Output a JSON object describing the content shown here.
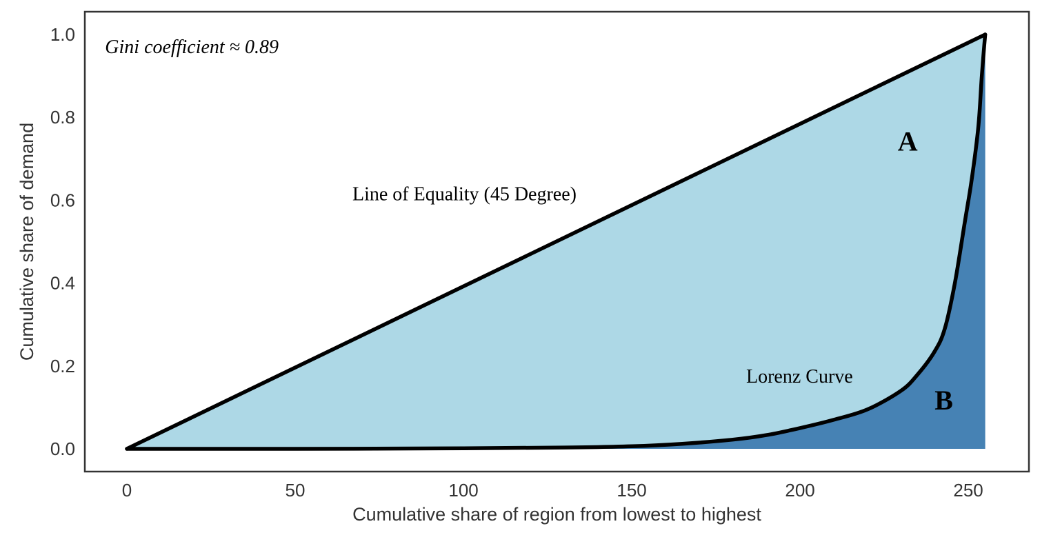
{
  "chart_data": {
    "type": "area",
    "title": "",
    "xlabel": "Cumulative share of region from lowest to highest",
    "ylabel": "Cumulative share of demand",
    "xlim": [
      -12.5,
      268
    ],
    "ylim": [
      -0.055,
      1.055
    ],
    "x_ticks": [
      0,
      50,
      100,
      150,
      200,
      250
    ],
    "x_tick_labels": [
      "0",
      "50",
      "100",
      "150",
      "200",
      "250"
    ],
    "y_ticks": [
      0.0,
      0.2,
      0.4,
      0.6,
      0.8,
      1.0
    ],
    "y_tick_labels": [
      "0.0",
      "0.2",
      "0.4",
      "0.6",
      "0.8",
      "1.0"
    ],
    "grid": false,
    "legend": "none",
    "colors": {
      "equality_fill": "#add8e6",
      "lorenz_fill": "#4682b4",
      "line": "#000000",
      "frame": "#333333"
    },
    "series": [
      {
        "role": "equality",
        "x": [
          0,
          255
        ],
        "y": [
          0.0,
          1.0
        ]
      },
      {
        "role": "lorenz",
        "x": [
          0,
          50,
          100,
          130,
          150,
          165,
          180,
          190,
          200,
          210,
          220,
          230,
          235,
          240,
          243,
          246,
          249,
          251,
          253,
          254,
          255
        ],
        "y": [
          0.0,
          0.0,
          0.001,
          0.003,
          0.006,
          0.012,
          0.022,
          0.033,
          0.05,
          0.07,
          0.095,
          0.14,
          0.18,
          0.235,
          0.29,
          0.4,
          0.55,
          0.65,
          0.78,
          0.9,
          1.0
        ]
      }
    ],
    "annotations": [
      {
        "text": "Gini coefficient ≈ 0.89",
        "x": -6.5,
        "y": 0.955,
        "style": "italic"
      },
      {
        "text": "Line of Equality (45 Degree)",
        "x": 67,
        "y": 0.6,
        "style": "normal"
      },
      {
        "text": "Lorenz Curve",
        "x": 184,
        "y": 0.16,
        "style": "normal"
      },
      {
        "text": "A",
        "x": 229,
        "y": 0.72,
        "style": "bold"
      },
      {
        "text": "B",
        "x": 240,
        "y": 0.095,
        "style": "bold"
      }
    ]
  }
}
